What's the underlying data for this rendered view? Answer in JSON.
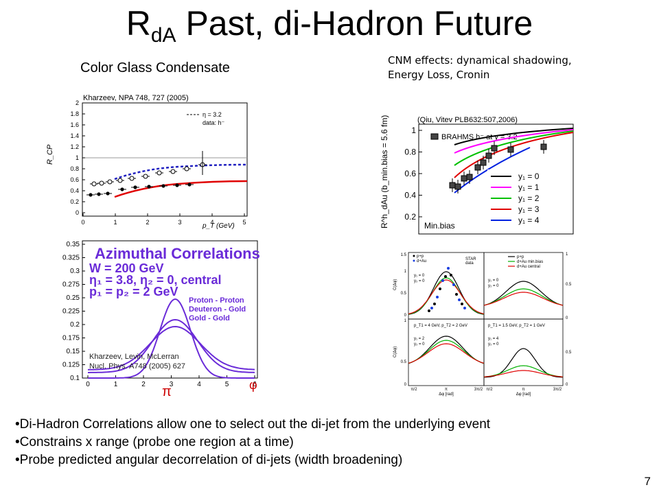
{
  "slide": {
    "title_main": "R",
    "title_sub": "dA",
    "title_rest": " Past, di-Hadron Future",
    "cgc_heading": "Color Glass Condensate",
    "cnm_heading_line1": "CNM effects: dynamical shadowing,",
    "cnm_heading_line2": "Energy Loss, Cronin",
    "bullets": [
      "Di-Hadron Correlations allow one to select out the di-jet from the underlying event",
      "Constrains x range (probe one region at a time)",
      "Probe predicted angular decorrelation of di-jets (width broadening)"
    ],
    "page_number": "7"
  },
  "plot_rcp": {
    "citation": "Kharzeev, NPA 748, 727 (2005)",
    "ylabel": "R_CP",
    "xlabel": "p_T   (GeV)",
    "legend_line1": "η = 3.2",
    "legend_line2": "data: h⁻",
    "yticks": [
      "0",
      "0.2",
      "0.4",
      "0.6",
      "0.8",
      "1",
      "1.2",
      "1.4",
      "1.6",
      "1.8",
      "2"
    ],
    "xticks": [
      "0",
      "1",
      "2",
      "3",
      "4",
      "5"
    ]
  },
  "plot_azimuthal": {
    "title": "Azimuthal Correlations",
    "line1": "W = 200 GeV",
    "line2": "η₁ = 3.8, η₂ = 0, central",
    "line3": "p₁ = p₂ = 2 GeV",
    "legend": [
      "Proton - Proton",
      "Deuteron - Gold",
      "Gold - Gold"
    ],
    "yticks": [
      "0.1",
      "0.125",
      "0.15",
      "0.175",
      "0.2",
      "0.225",
      "0.25",
      "0.275",
      "0.3",
      "0.325",
      "0.35"
    ],
    "xticks": [
      "0",
      "1",
      "2",
      "3",
      "4",
      "5",
      "6"
    ],
    "pi_label": "π",
    "phi_label": "φ",
    "citation_line1": "Kharzeev, Levin, McLerran",
    "citation_line2": "Nucl. Phys. A748 (2005) 627"
  },
  "plot_rdau": {
    "citation": "(Qiu, Vitev PLB632:507,2006)",
    "ylabel": "R^h_dAu (b_min.bias = 5.6 fm)",
    "data_legend": "BRAHMS h⁻ at y = 3.2",
    "minbias": "Min.bias",
    "yticks": [
      "0.2",
      "0.4",
      "0.6",
      "0.8",
      "1"
    ],
    "series": [
      {
        "name": "y₁ = 0",
        "color": "#000000"
      },
      {
        "name": "y₁ = 1",
        "color": "#ff00ff"
      },
      {
        "name": "y₁ = 2",
        "color": "#00c000"
      },
      {
        "name": "y₁ = 3",
        "color": "#e00000"
      },
      {
        "name": "y₁ = 4",
        "color": "#0020e0"
      }
    ]
  },
  "plot_star": {
    "tl_legend": [
      "p+p",
      "d+Au"
    ],
    "tl_note": [
      "STAR",
      "data"
    ],
    "tl_y": [
      "y₁ = 0",
      "y₂ = 0"
    ],
    "tr_legend": [
      "p+p",
      "d+Au min.bias",
      "d+Au central"
    ],
    "tr_y": [
      "y₁ = 0",
      "y₂ = 0"
    ],
    "bl_p": "p_T1 = 4 GeV, p_T2 = 2 GeV",
    "bl_y": [
      "y₁ = 2",
      "y₂ = 0"
    ],
    "br_p": "p_T1 = 1.5 GeV, p_T2 = 1 GeV",
    "br_y": [
      "y₁ = 4",
      "y₂ = 0"
    ],
    "ylabel": "C(Δφ)",
    "xlabel": "Δφ [rad]",
    "xticks": [
      "π/2",
      "π",
      "3π/2"
    ],
    "yticks_left": [
      "0",
      "0.5",
      "1",
      "1.5"
    ],
    "yticks_right": [
      "0",
      "0.5",
      "1"
    ]
  }
}
